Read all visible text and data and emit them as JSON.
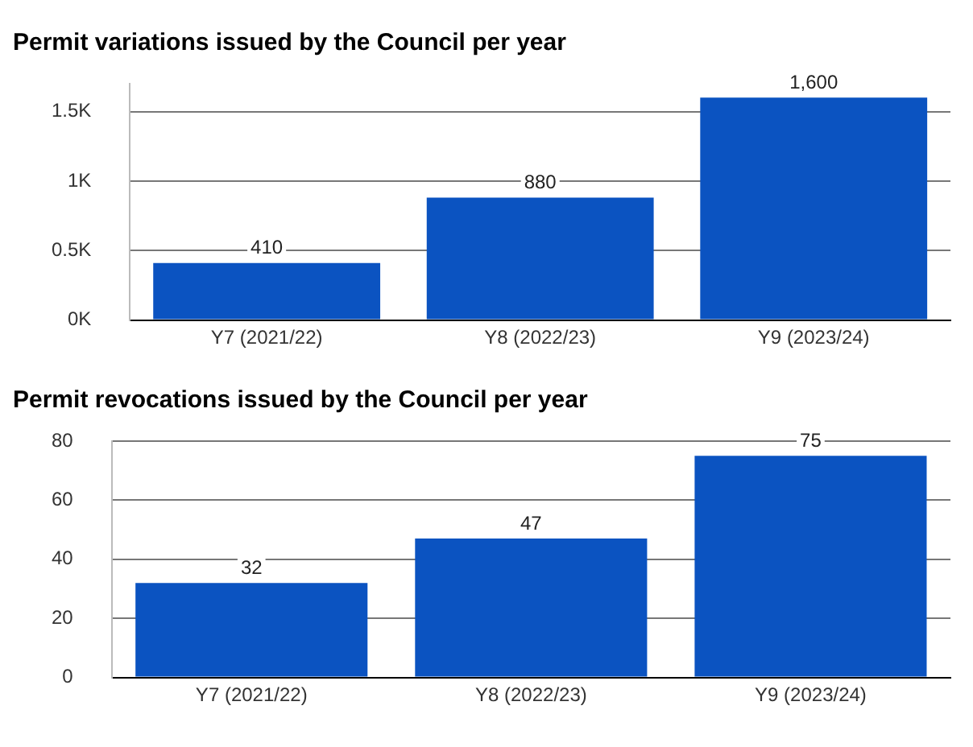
{
  "chart_data": [
    {
      "type": "bar",
      "title": "Permit variations issued by the Council per year",
      "categories": [
        "Y7 (2021/22)",
        "Y8 (2022/23)",
        "Y9 (2023/24)"
      ],
      "values": [
        410,
        880,
        1600
      ],
      "value_labels": [
        "410",
        "880",
        "1,600"
      ],
      "color": "#0b53c1",
      "ylim": [
        0,
        1700
      ],
      "yticks": [
        {
          "value": 0,
          "label": "0K"
        },
        {
          "value": 500,
          "label": "0.5K"
        },
        {
          "value": 1000,
          "label": "1K"
        },
        {
          "value": 1500,
          "label": "1.5K"
        }
      ],
      "grid": "y"
    },
    {
      "type": "bar",
      "title": "Permit revocations issued by the Council per year",
      "categories": [
        "Y7 (2021/22)",
        "Y8 (2022/23)",
        "Y9 (2023/24)"
      ],
      "values": [
        32,
        47,
        75
      ],
      "data_labels": true,
      "color": "#0b53c1",
      "ylim": [
        0,
        80
      ],
      "yticks": [
        0,
        20,
        40,
        60,
        80
      ],
      "grid": "y"
    }
  ]
}
